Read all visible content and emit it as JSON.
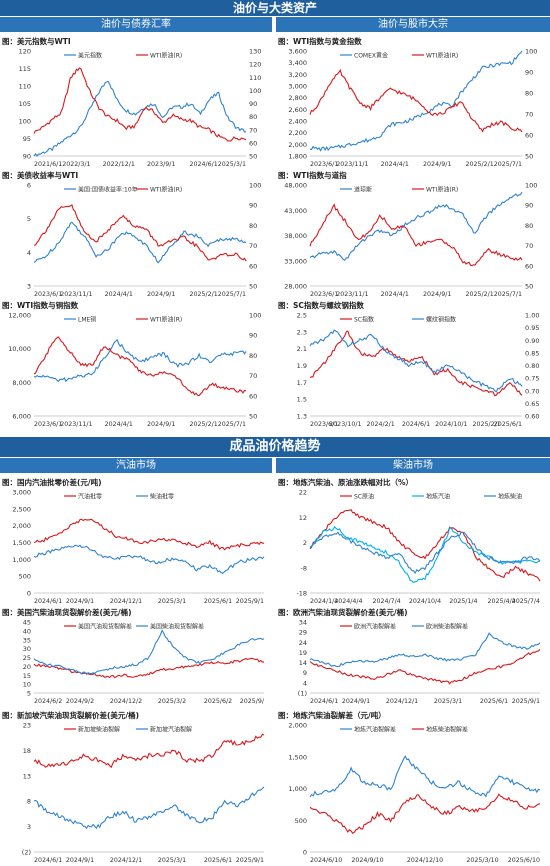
{
  "header": {
    "section1_title": "油价与大类资产",
    "section1_left": "油价与债券汇率",
    "section1_right": "油价与股市大宗",
    "section2_title": "成品油价格趋势",
    "section2_left": "汽油市场",
    "section2_right": "柴油市场"
  },
  "chart_data": [
    {
      "type": "line",
      "title": "图：美元指数与WTI",
      "xlabels": [
        "2021/6/1",
        "2022/3/1",
        "2022/12/1",
        "2023/9/1",
        "2024/6/1",
        "2025/3/1"
      ],
      "left_ticks": [
        "120",
        "115",
        "110",
        "105",
        "100",
        "95",
        "90"
      ],
      "ylim": [
        90,
        120
      ],
      "right_ticks": [
        "130",
        "120",
        "110",
        "100",
        "90",
        "80",
        "70",
        "60",
        "50"
      ],
      "y2lim": [
        50,
        130
      ],
      "series": [
        {
          "name": "美元指数",
          "color": "#2f83d0",
          "axis": "left",
          "values": [
            90,
            91,
            92,
            94,
            96,
            98,
            103,
            108,
            112,
            106,
            103,
            102,
            104,
            105,
            101,
            104,
            104,
            105,
            102,
            106,
            108,
            101,
            98,
            97
          ]
        },
        {
          "name": "WTI原油(R)",
          "color": "#d7191c",
          "axis": "right",
          "values": [
            68,
            72,
            78,
            83,
            110,
            118,
            100,
            87,
            80,
            77,
            71,
            73,
            87,
            84,
            75,
            81,
            78,
            77,
            72,
            70,
            65,
            62,
            64,
            63
          ]
        }
      ]
    },
    {
      "type": "line",
      "title": "图：WTI指数与黄金指数",
      "xlabels": [
        "2023/6/1",
        "2023/11/1",
        "2024/4/1",
        "2024/9/1",
        "2025/2/1",
        "2025/7/1"
      ],
      "left_ticks": [
        "3,600",
        "3,400",
        "3,200",
        "3,000",
        "2,800",
        "2,600",
        "2,400",
        "2,200",
        "2,000",
        "1,800"
      ],
      "ylim": [
        1800,
        3600
      ],
      "right_ticks": [
        "100",
        "90",
        "80",
        "70",
        "60",
        "50"
      ],
      "y2lim": [
        50,
        100
      ],
      "series": [
        {
          "name": "COMEX黄金",
          "color": "#2f83d0",
          "axis": "left",
          "values": [
            1940,
            1920,
            1930,
            1960,
            2000,
            2040,
            2080,
            2160,
            2340,
            2370,
            2420,
            2500,
            2600,
            2700,
            2650,
            2900,
            3100,
            3300,
            3350,
            3380,
            3400,
            3600
          ]
        },
        {
          "name": "WTI原油(R)",
          "color": "#d7191c",
          "axis": "right",
          "values": [
            70,
            76,
            85,
            90,
            82,
            75,
            73,
            78,
            82,
            80,
            78,
            75,
            70,
            70,
            73,
            76,
            68,
            62,
            65,
            66,
            63,
            62
          ]
        }
      ]
    },
    {
      "type": "line",
      "title": "图：美债收益率与WTI",
      "xlabels": [
        "2023/6/1",
        "2023/11/1",
        "2024/4/1",
        "2024/9/1",
        "2025/2/1",
        "2025/7/1"
      ],
      "left_ticks": [
        "6",
        "5",
        "4",
        "3"
      ],
      "ylim": [
        3,
        6
      ],
      "right_ticks": [
        "100",
        "90",
        "80",
        "70",
        "60",
        "50"
      ],
      "y2lim": [
        50,
        100
      ],
      "series": [
        {
          "name": "美国:国债收益率:10年",
          "color": "#2f83d0",
          "axis": "left",
          "values": [
            3.7,
            3.9,
            4.3,
            4.9,
            4.5,
            3.9,
            4.1,
            4.6,
            4.5,
            4.2,
            3.7,
            4.2,
            4.6,
            4.5,
            4.2,
            4.4,
            4.4,
            4.3
          ]
        },
        {
          "name": "WTI原油(R)",
          "color": "#d7191c",
          "axis": "right",
          "values": [
            70,
            78,
            88,
            90,
            77,
            72,
            78,
            85,
            80,
            78,
            70,
            72,
            74,
            70,
            63,
            65,
            66,
            63
          ]
        }
      ]
    },
    {
      "type": "line",
      "title": "图：WTI指数与道指",
      "xlabels": [
        "2023/6/1",
        "2023/11/1",
        "2024/4/1",
        "2024/9/1",
        "2025/2/1",
        "2025/7/1"
      ],
      "left_ticks": [
        "48,000",
        "43,000",
        "38,000",
        "33,000",
        "28,000"
      ],
      "ylim": [
        28000,
        48000
      ],
      "right_ticks": [
        "100",
        "90",
        "80",
        "70",
        "60",
        "50"
      ],
      "y2lim": [
        50,
        100
      ],
      "series": [
        {
          "name": "道琼斯",
          "color": "#2f83d0",
          "axis": "left",
          "values": [
            33500,
            34500,
            34800,
            33200,
            36000,
            38000,
            39000,
            38000,
            40000,
            41500,
            42500,
            44000,
            43500,
            42000,
            38500,
            42000,
            44000,
            45500,
            46500
          ]
        },
        {
          "name": "WTI原油(R)",
          "color": "#d7191c",
          "axis": "right",
          "values": [
            70,
            80,
            90,
            82,
            73,
            76,
            85,
            78,
            80,
            70,
            72,
            73,
            70,
            62,
            60,
            68,
            66,
            64,
            63
          ]
        }
      ]
    },
    {
      "type": "line",
      "title": "图：WTI指数与铜指数",
      "xlabels": [
        "2023/6/1",
        "2023/11/1",
        "2024/4/1",
        "2024/9/1",
        "2025/2/1",
        "2025/7/1"
      ],
      "left_ticks": [
        "12,000",
        "10,000",
        "8,000",
        "6,000"
      ],
      "ylim": [
        6000,
        12000
      ],
      "right_ticks": [
        "100",
        "90",
        "80",
        "70",
        "60",
        "50"
      ],
      "y2lim": [
        50,
        100
      ],
      "series": [
        {
          "name": "LME铜",
          "color": "#2f83d0",
          "axis": "left",
          "values": [
            8300,
            8400,
            8100,
            8200,
            8400,
            8500,
            9500,
            10500,
            9700,
            9200,
            9500,
            9700,
            9000,
            9100,
            9600,
            9200,
            9700,
            9700,
            9800
          ]
        },
        {
          "name": "WTI原油(R)",
          "color": "#d7191c",
          "axis": "right",
          "values": [
            70,
            80,
            90,
            82,
            75,
            76,
            85,
            80,
            78,
            72,
            70,
            72,
            70,
            63,
            60,
            66,
            64,
            63,
            62
          ]
        }
      ]
    },
    {
      "type": "line",
      "title": "图：SC指数与螺纹钢指数",
      "xlabels": [
        "2023/6/1",
        "2023/10/1",
        "2024/2/1",
        "2024/6/1",
        "2024/10/1",
        "2025/2/1",
        "2025/6/1"
      ],
      "left_ticks": [
        "2.5",
        "2.3",
        "2.1",
        "1.9",
        "1.7",
        "1.5",
        "1.3"
      ],
      "ylim": [
        1.3,
        2.5
      ],
      "right_ticks": [
        "1.00",
        "0.95",
        "0.90",
        "0.85",
        "0.80",
        "0.75",
        "0.70",
        "0.65",
        "0.60"
      ],
      "y2lim": [
        0.6,
        1.0
      ],
      "series": [
        {
          "name": "SC指数",
          "color": "#d7191c",
          "axis": "left",
          "values": [
            1.75,
            1.9,
            2.1,
            2.3,
            2.05,
            2.0,
            2.1,
            2.0,
            1.95,
            2.0,
            1.8,
            1.85,
            1.7,
            1.65,
            1.6,
            1.55,
            1.7,
            1.55
          ]
        },
        {
          "name": "螺纹钢指数",
          "color": "#2f83d0",
          "axis": "right",
          "values": [
            0.88,
            0.9,
            0.94,
            0.88,
            0.9,
            0.92,
            0.86,
            0.83,
            0.8,
            0.82,
            0.77,
            0.8,
            0.78,
            0.74,
            0.72,
            0.7,
            0.75,
            0.72
          ]
        }
      ]
    },
    {
      "type": "line",
      "title": "图：国内汽油批零价差(元/吨)",
      "xlabels": [
        "2024/6/1",
        "2024/9/1",
        "2024/12/1",
        "2025/3/1",
        "2025/6/1",
        "2025/9/1"
      ],
      "left_ticks": [
        "3,000",
        "2,500",
        "2,000",
        "1,500",
        "1,000",
        "500",
        "0"
      ],
      "ylim": [
        0,
        3000
      ],
      "right_ticks": [],
      "y2lim": null,
      "series": [
        {
          "name": "汽油批零",
          "color": "#d7191c",
          "axis": "left",
          "values": [
            1500,
            1600,
            1800,
            2100,
            2200,
            2000,
            1700,
            1600,
            1500,
            1550,
            1600,
            1500,
            1400,
            1500,
            1300,
            1400,
            1450,
            1500
          ]
        },
        {
          "name": "柴油批零",
          "color": "#2f83d0",
          "axis": "left",
          "values": [
            1100,
            1200,
            1300,
            1400,
            1350,
            1100,
            1000,
            1100,
            1050,
            900,
            1000,
            950,
            700,
            800,
            600,
            900,
            1000,
            1050
          ]
        }
      ]
    },
    {
      "type": "line",
      "title": "图：地炼汽柴油、原油涨跌幅对比（%）",
      "xlabels": [
        "2024/1/4",
        "2024/4/4",
        "2024/7/4",
        "2024/10/4",
        "2025/1/4",
        "2025/4/4",
        "2025/7/4"
      ],
      "left_ticks": [
        "22",
        "12",
        "2",
        "-8",
        "-18"
      ],
      "ylim": [
        -18,
        22
      ],
      "right_ticks": [],
      "y2lim": null,
      "series": [
        {
          "name": "SC原油",
          "color": "#d7191c",
          "axis": "left",
          "values": [
            0,
            6,
            12,
            15,
            12,
            10,
            8,
            2,
            -2,
            -4,
            2,
            8,
            6,
            -4,
            -8,
            -12,
            -8,
            -10,
            -13
          ]
        },
        {
          "name": "地炼汽油",
          "color": "#00b0f0",
          "axis": "left",
          "values": [
            0,
            6,
            8,
            4,
            2,
            0,
            -2,
            -6,
            -14,
            -12,
            -4,
            8,
            2,
            -2,
            -4,
            -6,
            -6,
            -5,
            -6
          ]
        },
        {
          "name": "地炼柴油",
          "color": "#2f83d0",
          "axis": "left",
          "values": [
            0,
            4,
            6,
            3,
            0,
            -2,
            -4,
            -2,
            -10,
            -8,
            -2,
            4,
            6,
            0,
            -4,
            -6,
            -6,
            -4,
            -5
          ]
        }
      ]
    },
    {
      "type": "line",
      "title": "图：美国汽柴油现货裂解价差(美元/桶)",
      "xlabels": [
        "2024/6/2",
        "2024/9/2",
        "2024/12/2",
        "2025/3/2",
        "2025/6/2",
        "2025/9/"
      ],
      "left_ticks": [
        "45",
        "40",
        "35",
        "30",
        "25",
        "20",
        "15",
        "10",
        "5"
      ],
      "ylim": [
        5,
        45
      ],
      "right_ticks": [],
      "y2lim": null,
      "series": [
        {
          "name": "美国汽油现货裂解差",
          "color": "#d7191c",
          "axis": "left",
          "values": [
            21,
            20,
            19,
            17,
            16,
            15,
            14,
            15,
            14,
            16,
            18,
            19,
            20,
            21,
            22,
            22,
            23,
            25,
            22
          ]
        },
        {
          "name": "美国柴油现货裂解差",
          "color": "#2f83d0",
          "axis": "left",
          "values": [
            24,
            21,
            20,
            18,
            16,
            17,
            19,
            20,
            21,
            25,
            40,
            30,
            24,
            22,
            24,
            28,
            32,
            35,
            36
          ]
        }
      ]
    },
    {
      "type": "line",
      "title": "图：欧洲汽柴油现货裂解价差(美元/桶)",
      "xlabels": [
        "2024/6/1",
        "2024/9/1",
        "2024/12/1",
        "2025/3/1",
        "2025/6/1",
        "2025/9/1"
      ],
      "left_ticks": [
        "34",
        "29",
        "24",
        "19",
        "14",
        "9",
        "4",
        "(1)"
      ],
      "ylim": [
        -1,
        34
      ],
      "right_ticks": [],
      "y2lim": null,
      "series": [
        {
          "name": "欧洲汽油裂解差",
          "color": "#d7191c",
          "axis": "left",
          "values": [
            14,
            12,
            10,
            8,
            7,
            6,
            8,
            10,
            8,
            6,
            5,
            4,
            6,
            9,
            11,
            12,
            14,
            18,
            20
          ]
        },
        {
          "name": "欧洲柴油裂解差",
          "color": "#2f83d0",
          "axis": "left",
          "values": [
            16,
            14,
            12,
            14,
            15,
            14,
            16,
            18,
            17,
            18,
            16,
            15,
            16,
            18,
            28,
            24,
            22,
            21,
            24
          ]
        }
      ]
    },
    {
      "type": "line",
      "title": "图：新加坡汽柴油现货裂解价差(美元/桶)",
      "xlabels": [
        "2024/6/1",
        "2024/9/1",
        "2024/12/1",
        "2025/3/1",
        "2025/6/1",
        "2025/9/1"
      ],
      "left_ticks": [
        "23",
        "18",
        "13",
        "8",
        "3",
        "(2)"
      ],
      "ylim": [
        -2,
        23
      ],
      "right_ticks": [],
      "y2lim": null,
      "series": [
        {
          "name": "新加坡柴油裂解",
          "color": "#d7191c",
          "axis": "left",
          "values": [
            16,
            15,
            15,
            16,
            17,
            16,
            15,
            17,
            16,
            17,
            17,
            18,
            16,
            16,
            17,
            20,
            19,
            20,
            21
          ]
        },
        {
          "name": "新加坡汽油裂解",
          "color": "#2f83d0",
          "axis": "left",
          "values": [
            8,
            6,
            5,
            4,
            3,
            3,
            5,
            6,
            4,
            5,
            6,
            7,
            5,
            4,
            5,
            8,
            7,
            9,
            11
          ]
        }
      ]
    },
    {
      "type": "line",
      "title": "图：地炼汽柴油裂解差（元/吨）",
      "xlabels": [
        "2024/6/10",
        "2024/9/10",
        "2024/12/10",
        "2025/3/10",
        "2025/6/10"
      ],
      "left_ticks": [
        "2,000",
        "1,500",
        "1,000",
        "500",
        "0"
      ],
      "ylim": [
        0,
        2000
      ],
      "right_ticks": [],
      "y2lim": null,
      "series": [
        {
          "name": "地炼汽油裂解差",
          "color": "#2f83d0",
          "axis": "left",
          "values": [
            900,
            950,
            1000,
            1300,
            1100,
            1050,
            1000,
            1500,
            1300,
            1100,
            1000,
            1100,
            950,
            900,
            1200,
            1100,
            1000,
            950
          ]
        },
        {
          "name": "地炼柴油裂解差",
          "color": "#d7191c",
          "axis": "left",
          "values": [
            700,
            600,
            500,
            300,
            400,
            600,
            500,
            800,
            900,
            700,
            600,
            700,
            650,
            700,
            900,
            800,
            700,
            750
          ]
        }
      ]
    }
  ]
}
